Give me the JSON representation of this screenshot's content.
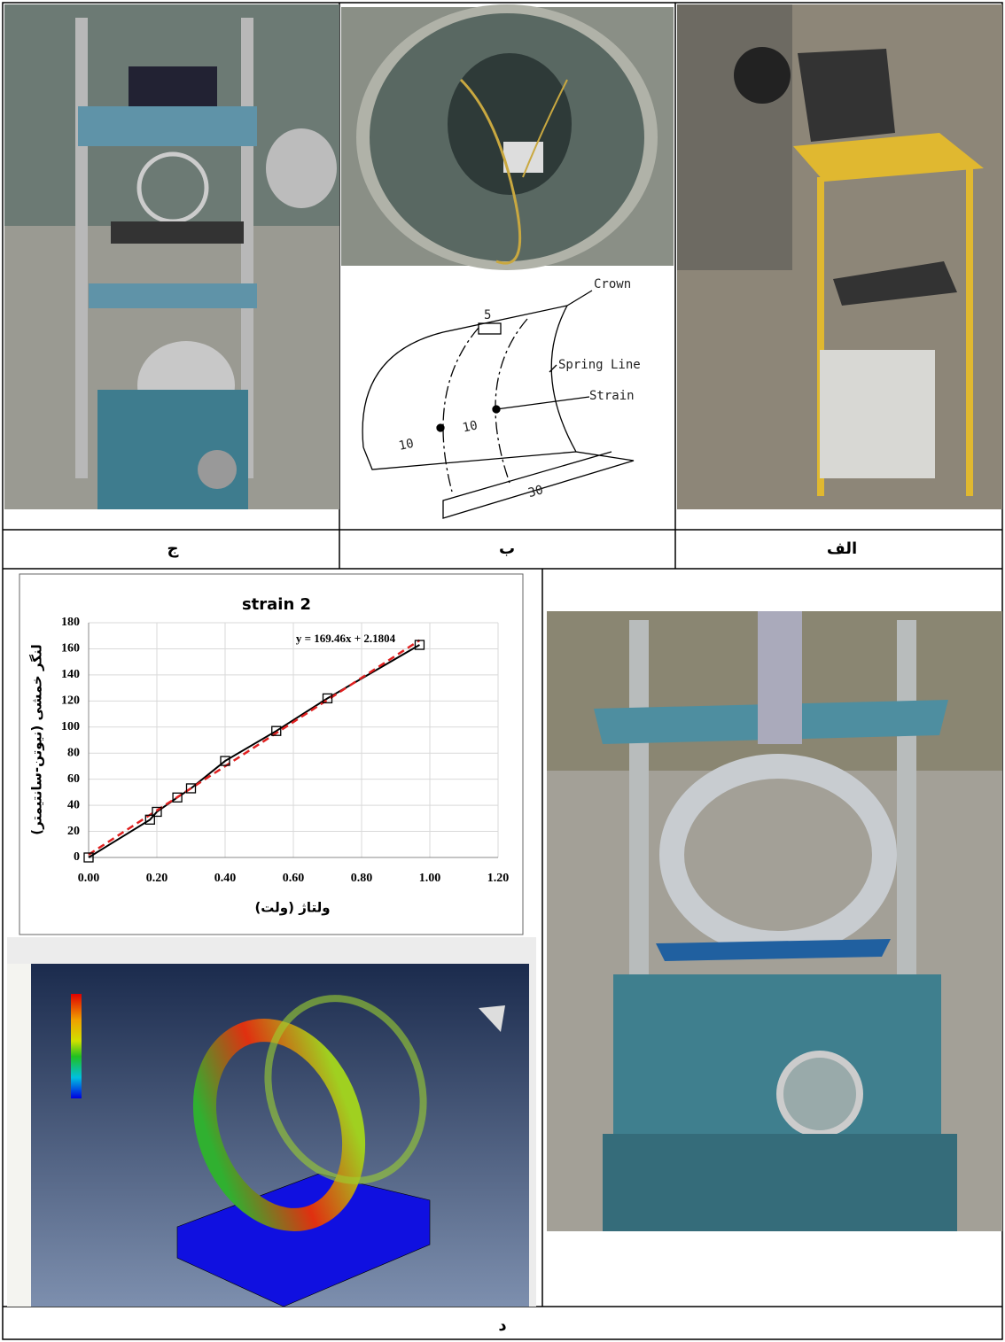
{
  "panels": {
    "label_a": "الف",
    "label_b": "ب",
    "label_c": "ج",
    "label_d": "د"
  },
  "diagram": {
    "crown": "Crown",
    "spring_line": "Spring Line",
    "strain": "Strain",
    "dim_top": "5",
    "dim_left": "10",
    "dim_mid": "10",
    "dim_bottom": "30"
  },
  "chart_data": {
    "type": "line",
    "title": "strain 2",
    "x_label": "ولتاژ (ولت)",
    "y_label": "لنگر خمشی (نیوتن-سانتیمتر)",
    "x": [
      0,
      0.18,
      0.2,
      0.26,
      0.3,
      0.4,
      0.55,
      0.7,
      0.97
    ],
    "series": [
      {
        "color": "#000000",
        "values": [
          0,
          29,
          35,
          46,
          53,
          74,
          97,
          122,
          163
        ]
      }
    ],
    "trendline": {
      "slope": 169.46,
      "intercept": 2.1804,
      "color": "#e02020",
      "equation": "y = 169.46x + 2.1804"
    },
    "xlim": [
      0,
      1.2
    ],
    "xticks": [
      {
        "value": 0,
        "label": "0.00"
      },
      {
        "value": 0.2,
        "label": "0.20"
      },
      {
        "value": 0.4,
        "label": "0.40"
      },
      {
        "value": 0.6,
        "label": "0.60"
      },
      {
        "value": 0.8,
        "label": "0.80"
      },
      {
        "value": 1,
        "label": "1.00"
      },
      {
        "value": 1.2,
        "label": "1.20"
      }
    ],
    "ylim": [
      0,
      180
    ],
    "yticks": [
      0,
      20,
      40,
      60,
      80,
      100,
      120,
      140,
      160,
      180
    ],
    "grid": true
  }
}
